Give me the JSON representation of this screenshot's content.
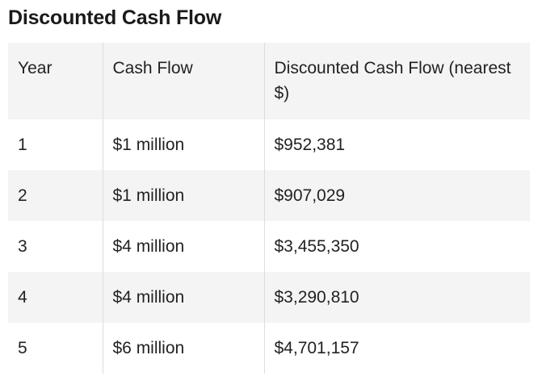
{
  "title": "Discounted Cash Flow",
  "table": {
    "headers": [
      "Year",
      "Cash Flow",
      "Discounted Cash Flow (nearest $)"
    ],
    "rows": [
      [
        "1",
        "$1 million",
        "$952,381"
      ],
      [
        "2",
        "$1 million",
        "$907,029"
      ],
      [
        "3",
        "$4 million",
        "$3,455,350"
      ],
      [
        "4",
        "$4 million",
        "$3,290,810"
      ],
      [
        "5",
        "$6 million",
        "$4,701,157"
      ]
    ]
  }
}
